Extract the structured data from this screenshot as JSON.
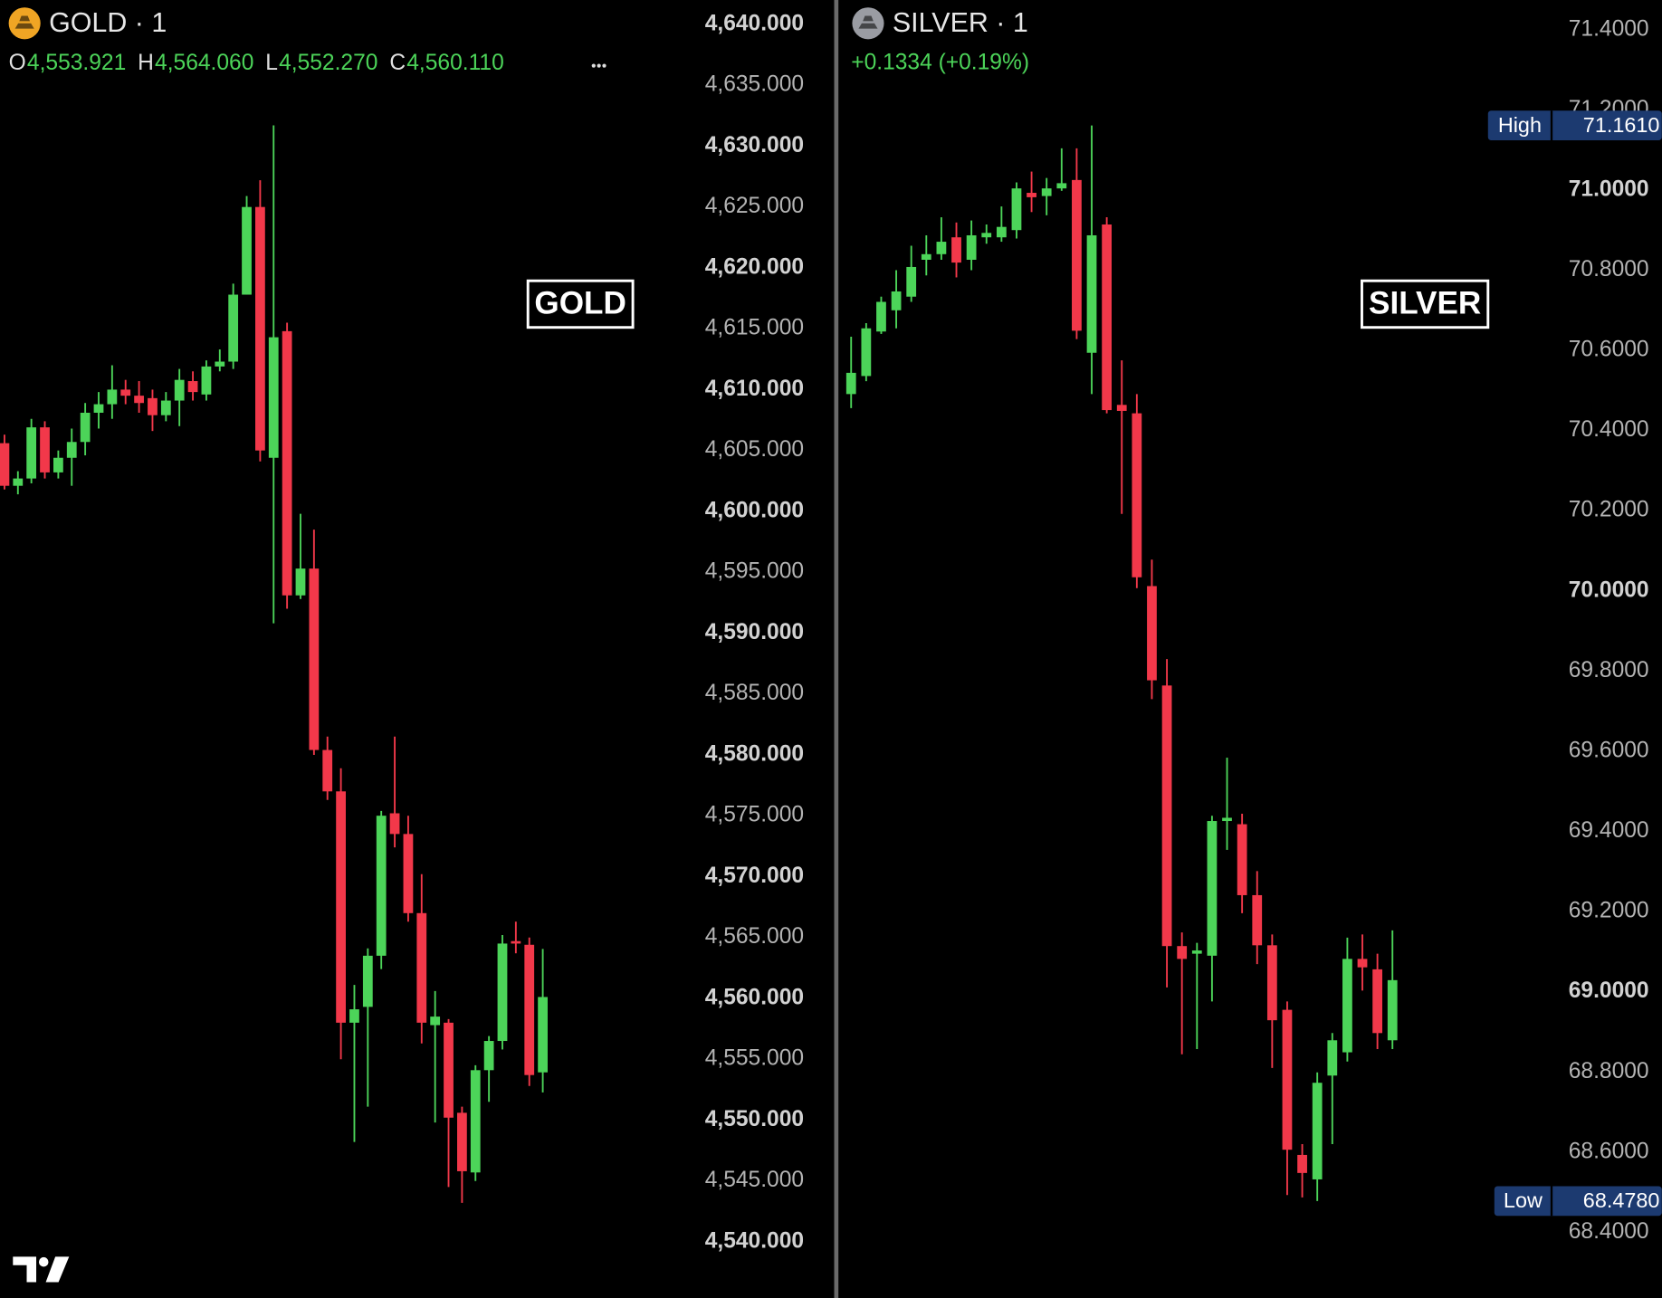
{
  "chart_data": [
    {
      "type": "candlestick",
      "title": "GOLD · 1",
      "watermark": "GOLD",
      "ohlc_labels": [
        {
          "key": "O",
          "text": "4,553.921"
        },
        {
          "key": "H",
          "text": "4,564.060"
        },
        {
          "key": "L",
          "text": "4,552.270"
        },
        {
          "key": "C",
          "text": "4,560.110"
        }
      ],
      "up_color": "#4cd459",
      "down_color": "#f2384a",
      "icon_color": "#f0a524",
      "ylim": [
        4540,
        4640
      ],
      "yticks": [
        {
          "value": 4640,
          "label": "4,640.000"
        },
        {
          "value": 4635,
          "label": "4,635.000"
        },
        {
          "value": 4630,
          "label": "4,630.000"
        },
        {
          "value": 4625,
          "label": "4,625.000"
        },
        {
          "value": 4620,
          "label": "4,620.000"
        },
        {
          "value": 4615,
          "label": "4,615.000"
        },
        {
          "value": 4610,
          "label": "4,610.000"
        },
        {
          "value": 4605,
          "label": "4,605.000"
        },
        {
          "value": 4600,
          "label": "4,600.000"
        },
        {
          "value": 4595,
          "label": "4,595.000"
        },
        {
          "value": 4590,
          "label": "4,590.000"
        },
        {
          "value": 4585,
          "label": "4,585.000"
        },
        {
          "value": 4580,
          "label": "4,580.000"
        },
        {
          "value": 4575,
          "label": "4,575.000"
        },
        {
          "value": 4570,
          "label": "4,570.000"
        },
        {
          "value": 4565,
          "label": "4,565.000"
        },
        {
          "value": 4560,
          "label": "4,560.000"
        },
        {
          "value": 4555,
          "label": "4,555.000"
        },
        {
          "value": 4550,
          "label": "4,550.000"
        },
        {
          "value": 4545,
          "label": "4,545.000"
        },
        {
          "value": 4540,
          "label": "4,540.000"
        }
      ],
      "open": [
        4605.6,
        4602.1,
        4602.7,
        4606.9,
        4603.2,
        4604.4,
        4605.7,
        4608.1,
        4608.8,
        4610.0,
        4609.5,
        4609.3,
        4607.9,
        4609.1,
        4610.7,
        4609.6,
        4611.9,
        4612.3,
        4617.8,
        4625.0,
        4604.4,
        4614.8,
        4593.1,
        4595.3,
        4580.4,
        4577.0,
        4558.0,
        4559.3,
        4563.5,
        4575.2,
        4573.5,
        4567.0,
        4557.8,
        4558.0,
        4550.6,
        4545.7,
        4554.1,
        4556.5,
        4564.7,
        4564.4,
        4553.921
      ],
      "high": [
        4606.3,
        4603.3,
        4607.6,
        4607.4,
        4605.0,
        4606.8,
        4608.9,
        4609.8,
        4612.0,
        4610.8,
        4610.7,
        4610.0,
        4609.8,
        4611.7,
        4611.5,
        4612.4,
        4613.3,
        4618.7,
        4625.9,
        4627.2,
        4631.7,
        4615.5,
        4599.8,
        4598.5,
        4581.5,
        4578.9,
        4561.1,
        4564.1,
        4575.4,
        4581.5,
        4575.0,
        4570.2,
        4560.6,
        4558.3,
        4551.1,
        4554.5,
        4556.9,
        4565.2,
        4566.3,
        4565.0,
        4564.06
      ],
      "low": [
        4601.8,
        4601.4,
        4602.3,
        4602.7,
        4602.7,
        4602.1,
        4604.6,
        4606.8,
        4607.6,
        4608.8,
        4608.1,
        4606.6,
        4607.4,
        4607.0,
        4609.1,
        4609.1,
        4611.5,
        4611.7,
        4617.8,
        4604.1,
        4590.8,
        4592.0,
        4592.8,
        4580.0,
        4576.3,
        4555.0,
        4548.2,
        4551.1,
        4562.4,
        4572.4,
        4566.3,
        4556.3,
        4549.8,
        4544.5,
        4543.2,
        4545.0,
        4551.5,
        4555.8,
        4563.7,
        4552.8,
        4552.27
      ],
      "close": [
        4602.1,
        4602.7,
        4606.9,
        4603.2,
        4604.4,
        4605.7,
        4608.1,
        4608.8,
        4610.0,
        4609.5,
        4608.9,
        4607.9,
        4609.1,
        4610.8,
        4609.8,
        4611.9,
        4612.3,
        4617.8,
        4625.0,
        4605.0,
        4614.3,
        4593.1,
        4595.3,
        4580.4,
        4577.0,
        4558.0,
        4559.1,
        4563.5,
        4575.0,
        4573.5,
        4567.0,
        4558.0,
        4558.5,
        4550.2,
        4545.8,
        4554.1,
        4556.5,
        4564.5,
        4564.5,
        4553.7,
        4560.11
      ]
    },
    {
      "type": "candlestick",
      "title": "SILVER · 1",
      "watermark": "SILVER",
      "change_label": "+0.1334 (+0.19%)",
      "up_color": "#4cd459",
      "down_color": "#f2384a",
      "icon_color": "#9a9ca3",
      "ylim": [
        68.4,
        71.4
      ],
      "yticks": [
        {
          "value": 71.4,
          "label": "71.4000"
        },
        {
          "value": 71.2,
          "label": "71.2000"
        },
        {
          "value": 71.0,
          "label": "71.0000"
        },
        {
          "value": 70.8,
          "label": "70.8000"
        },
        {
          "value": 70.6,
          "label": "70.6000"
        },
        {
          "value": 70.4,
          "label": "70.4000"
        },
        {
          "value": 70.2,
          "label": "70.2000"
        },
        {
          "value": 70.0,
          "label": "70.0000"
        },
        {
          "value": 69.8,
          "label": "69.8000"
        },
        {
          "value": 69.6,
          "label": "69.6000"
        },
        {
          "value": 69.4,
          "label": "69.4000"
        },
        {
          "value": 69.2,
          "label": "69.2000"
        },
        {
          "value": 69.0,
          "label": "69.0000"
        },
        {
          "value": 68.8,
          "label": "68.8000"
        },
        {
          "value": 68.6,
          "label": "68.6000"
        },
        {
          "value": 68.4,
          "label": "68.4000"
        }
      ],
      "high_marker": {
        "label": "High",
        "value": 71.161,
        "value_label": "71.1610"
      },
      "low_marker": {
        "label": "Low",
        "value": 68.478,
        "value_label": "68.4780"
      },
      "marker_color": "#1c3a70",
      "open": [
        70.491,
        70.536,
        70.647,
        70.7,
        70.734,
        70.826,
        70.84,
        70.882,
        70.826,
        70.882,
        70.882,
        70.9,
        70.993,
        70.985,
        71.004,
        71.025,
        70.594,
        70.914,
        70.464,
        70.443,
        70.012,
        69.764,
        69.114,
        69.095,
        69.09,
        69.426,
        69.418,
        69.241,
        69.116,
        68.955,
        68.593,
        68.532,
        68.791,
        68.849,
        69.082,
        69.056,
        68.879
      ],
      "high": [
        70.634,
        70.668,
        70.734,
        70.8,
        70.861,
        70.887,
        70.932,
        70.919,
        70.924,
        70.914,
        70.959,
        71.019,
        71.046,
        71.03,
        71.104,
        71.104,
        71.161,
        70.932,
        70.575,
        70.491,
        70.078,
        69.83,
        69.148,
        69.122,
        69.439,
        69.584,
        69.444,
        69.301,
        69.143,
        68.976,
        68.62,
        68.799,
        68.897,
        69.135,
        69.143,
        69.095,
        69.153
      ],
      "low": [
        70.456,
        70.523,
        70.641,
        70.655,
        70.721,
        70.787,
        70.826,
        70.782,
        70.8,
        70.866,
        70.871,
        70.879,
        70.945,
        70.937,
        70.998,
        70.628,
        70.491,
        70.443,
        70.192,
        70.007,
        69.73,
        69.011,
        68.844,
        68.857,
        68.976,
        69.354,
        69.196,
        69.069,
        68.81,
        68.493,
        68.487,
        68.478,
        68.62,
        68.826,
        69.003,
        68.857,
        68.857
      ],
      "close": [
        70.544,
        70.655,
        70.721,
        70.747,
        70.808,
        70.84,
        70.871,
        70.819,
        70.887,
        70.893,
        70.908,
        71.004,
        70.982,
        71.004,
        71.017,
        70.649,
        70.887,
        70.451,
        70.449,
        70.034,
        69.777,
        69.114,
        69.082,
        69.103,
        69.426,
        69.434,
        69.241,
        69.116,
        68.929,
        68.606,
        68.548,
        68.773,
        68.879,
        69.082,
        69.061,
        68.897,
        69.029
      ]
    }
  ]
}
